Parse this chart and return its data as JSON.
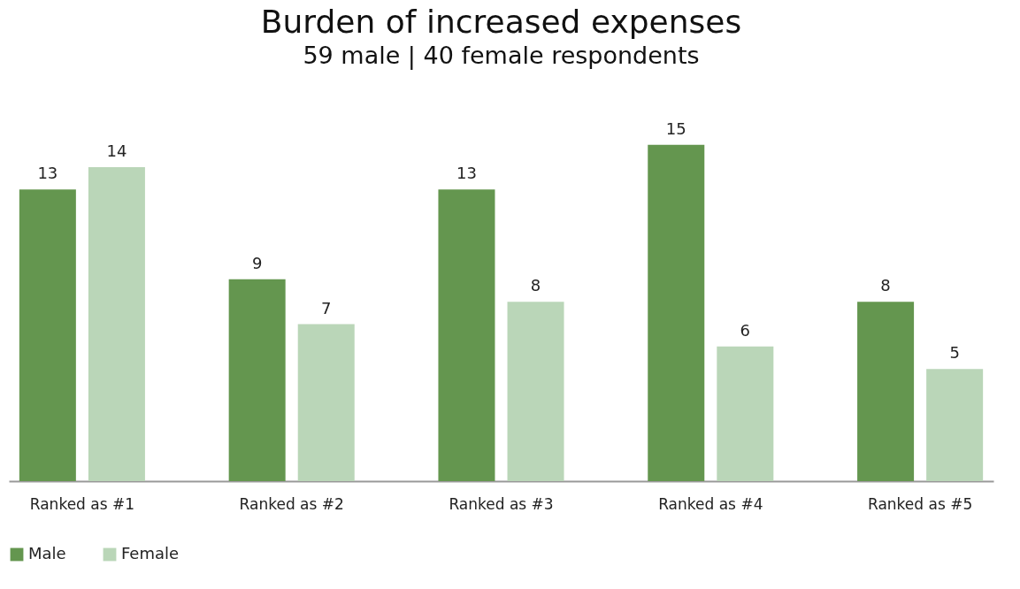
{
  "chart_data": {
    "type": "bar",
    "title": "Burden of increased expenses",
    "subtitle": "59 male | 40 female respondents",
    "categories": [
      "Ranked as #1",
      "Ranked as #2",
      "Ranked as #3",
      "Ranked as #4",
      "Ranked as #5"
    ],
    "series": [
      {
        "name": "Male",
        "color": "#64964f",
        "values": [
          13,
          9,
          13,
          15,
          8
        ]
      },
      {
        "name": "Female",
        "color": "#bad6b8",
        "values": [
          14,
          7,
          8,
          6,
          5
        ]
      }
    ],
    "data_labels": true,
    "grid": false,
    "legend": "bottom"
  }
}
